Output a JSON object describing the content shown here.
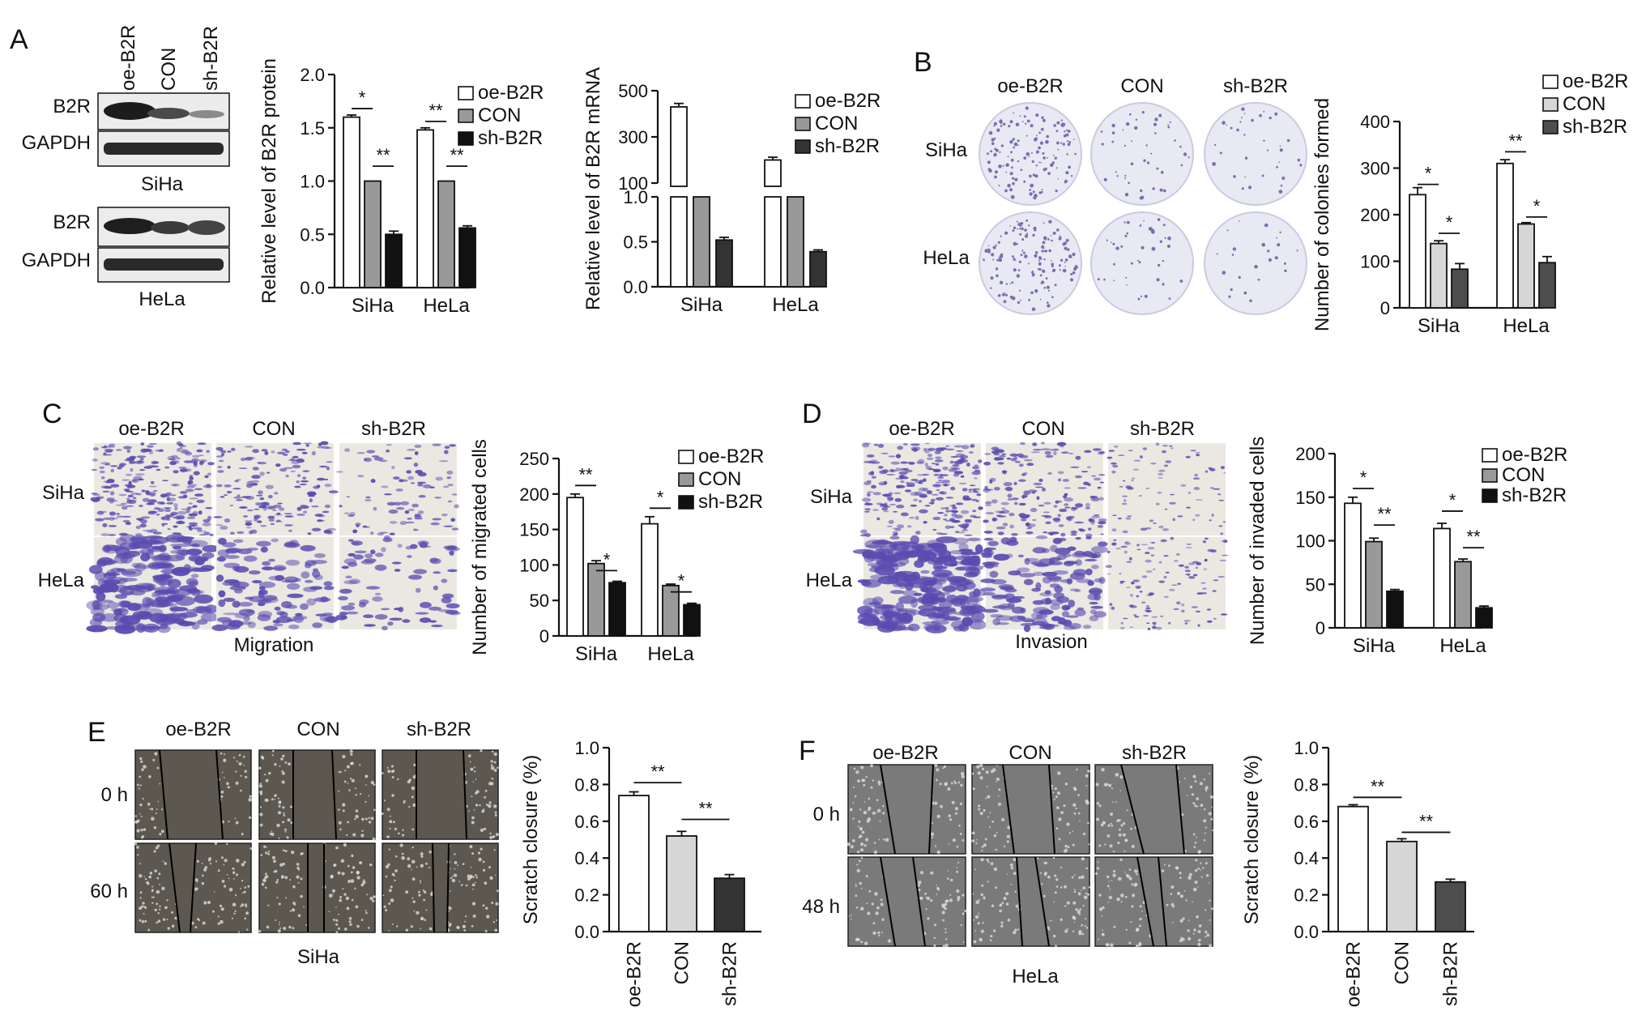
{
  "panels": {
    "A": {
      "letter": "A",
      "blot_columns": [
        "oe-B2R",
        "CON",
        "sh-B2R"
      ],
      "blot_rows": [
        "B2R",
        "GAPDH"
      ],
      "cell_lines": [
        "SiHa",
        "HeLa"
      ]
    },
    "B": {
      "letter": "B",
      "columns": [
        "oe-B2R",
        "CON",
        "sh-B2R"
      ],
      "rows": [
        "SiHa",
        "HeLa"
      ]
    },
    "C": {
      "letter": "C",
      "columns": [
        "oe-B2R",
        "CON",
        "sh-B2R"
      ],
      "rows": [
        "SiHa",
        "HeLa"
      ],
      "caption": "Migration"
    },
    "D": {
      "letter": "D",
      "columns": [
        "oe-B2R",
        "CON",
        "sh-B2R"
      ],
      "rows": [
        "SiHa",
        "HeLa"
      ],
      "caption": "Invasion"
    },
    "E": {
      "letter": "E",
      "columns": [
        "oe-B2R",
        "CON",
        "sh-B2R"
      ],
      "rows": [
        "0 h",
        "60 h"
      ],
      "caption": "SiHa"
    },
    "F": {
      "letter": "F",
      "columns": [
        "oe-B2R",
        "CON",
        "sh-B2R"
      ],
      "rows": [
        "0 h",
        "48 h"
      ],
      "caption": "HeLa"
    }
  },
  "colors": {
    "oe": "#ffffff",
    "con": "#999999",
    "sh": "#111111",
    "con_light": "#d6d6d6",
    "sh_dark": "#333333",
    "sh_mid": "#4d4d4d",
    "blot_bg": "#ececec",
    "colony_bg": "#e8e9f3",
    "colony_dots": "#7b6fae",
    "transwell_bg": "#eae8e1",
    "transwell_cells": "#5a4bb0",
    "scratch_e": "#5c5850",
    "scratch_f": "#7a7a7a"
  },
  "chart_data": [
    {
      "id": "A1",
      "type": "bar",
      "categories": [
        "SiHa",
        "HeLa"
      ],
      "series": [
        {
          "name": "oe-B2R",
          "values": [
            1.6,
            1.48
          ],
          "errors": [
            0.02,
            0.02
          ]
        },
        {
          "name": "CON",
          "values": [
            1.0,
            1.0
          ],
          "errors": [
            0.0,
            0.0
          ]
        },
        {
          "name": "sh-B2R",
          "values": [
            0.5,
            0.56
          ],
          "errors": [
            0.03,
            0.02
          ]
        }
      ],
      "ylabel": "Relative level of B2R protein",
      "ylim": [
        0,
        2.0
      ],
      "yticks": [
        "0.0",
        "0.5",
        "1.0",
        "1.5",
        "2.0"
      ],
      "legend": "top-right",
      "significance": [
        "*",
        "**",
        "**",
        "**"
      ]
    },
    {
      "id": "A2",
      "type": "bar",
      "categories": [
        "SiHa",
        "HeLa"
      ],
      "series": [
        {
          "name": "oe-B2R",
          "values": [
            430,
            200
          ],
          "errors": [
            15,
            12
          ]
        },
        {
          "name": "CON",
          "values": [
            1.0,
            1.0
          ],
          "errors": [
            0.0,
            0.0
          ]
        },
        {
          "name": "sh-B2R",
          "values": [
            0.52,
            0.39
          ],
          "errors": [
            0.03,
            0.02
          ]
        }
      ],
      "ylabel": "Relative level of B2R mRNA",
      "yaxis_break": true,
      "ylim_lower": [
        0,
        1.0
      ],
      "ylim_upper": [
        100,
        500
      ],
      "yticks": [
        "0.0",
        "0.5",
        "1.0",
        "100",
        "300",
        "500"
      ],
      "legend": "top-right"
    },
    {
      "id": "B",
      "type": "bar",
      "categories": [
        "SiHa",
        "HeLa"
      ],
      "series": [
        {
          "name": "oe-B2R",
          "values": [
            243,
            310
          ],
          "errors": [
            15,
            8
          ]
        },
        {
          "name": "CON",
          "values": [
            138,
            180
          ],
          "errors": [
            6,
            3
          ]
        },
        {
          "name": "sh-B2R",
          "values": [
            83,
            97
          ],
          "errors": [
            12,
            13
          ]
        }
      ],
      "ylabel": "Number of colonies formed",
      "ylim": [
        0,
        400
      ],
      "yticks": [
        "0",
        "100",
        "200",
        "300",
        "400"
      ],
      "legend": "top-right",
      "significance": [
        "*",
        "*",
        "**",
        "*"
      ]
    },
    {
      "id": "C",
      "type": "bar",
      "categories": [
        "SiHa",
        "HeLa"
      ],
      "series": [
        {
          "name": "oe-B2R",
          "values": [
            195,
            158
          ],
          "errors": [
            5,
            10
          ]
        },
        {
          "name": "CON",
          "values": [
            102,
            71
          ],
          "errors": [
            4,
            2
          ]
        },
        {
          "name": "sh-B2R",
          "values": [
            75,
            44
          ],
          "errors": [
            2,
            2
          ]
        }
      ],
      "ylabel": "Number of migrated cells",
      "ylim": [
        0,
        250
      ],
      "yticks": [
        "0",
        "50",
        "100",
        "150",
        "200",
        "250"
      ],
      "legend": "top-right",
      "significance": [
        "**",
        "*",
        "*",
        "*"
      ]
    },
    {
      "id": "D",
      "type": "bar",
      "categories": [
        "SiHa",
        "HeLa"
      ],
      "series": [
        {
          "name": "oe-B2R",
          "values": [
            143,
            114
          ],
          "errors": [
            7,
            6
          ]
        },
        {
          "name": "CON",
          "values": [
            99,
            76
          ],
          "errors": [
            4,
            3
          ]
        },
        {
          "name": "sh-B2R",
          "values": [
            42,
            23
          ],
          "errors": [
            2,
            2
          ]
        }
      ],
      "ylabel": "Number of invaded cells",
      "ylim": [
        0,
        200
      ],
      "yticks": [
        "0",
        "50",
        "100",
        "150",
        "200"
      ],
      "legend": "top-right",
      "significance": [
        "*",
        "**",
        "*",
        "**"
      ]
    },
    {
      "id": "E",
      "type": "bar",
      "categories": [
        "oe-B2R",
        "CON",
        "sh-B2R"
      ],
      "values": [
        0.74,
        0.52,
        0.29
      ],
      "errors": [
        0.02,
        0.025,
        0.02
      ],
      "ylabel": "Scratch closure (%)",
      "ylim": [
        0,
        1.0
      ],
      "yticks": [
        "0.0",
        "0.2",
        "0.4",
        "0.6",
        "0.8",
        "1.0"
      ],
      "significance": [
        "**",
        "**"
      ]
    },
    {
      "id": "F",
      "type": "bar",
      "categories": [
        "oe-B2R",
        "CON",
        "sh-B2R"
      ],
      "values": [
        0.68,
        0.49,
        0.27
      ],
      "errors": [
        0.01,
        0.015,
        0.015
      ],
      "ylabel": "Scratch closure (%)",
      "ylim": [
        0,
        1.0
      ],
      "yticks": [
        "0.0",
        "0.2",
        "0.4",
        "0.6",
        "0.8",
        "1.0"
      ],
      "significance": [
        "**",
        "**"
      ]
    }
  ]
}
